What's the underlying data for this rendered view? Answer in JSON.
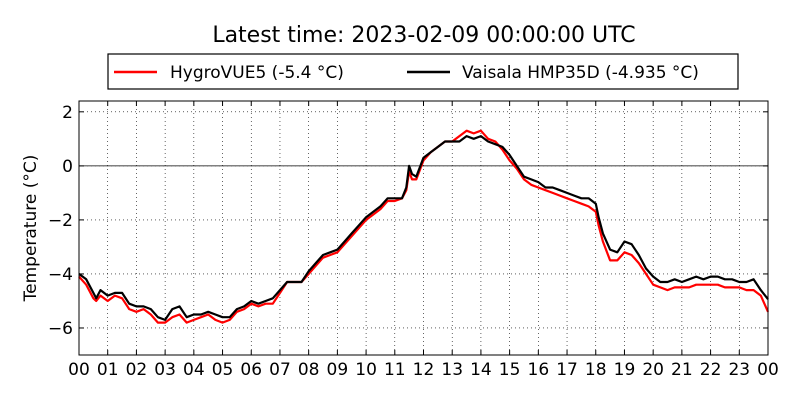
{
  "chart_data": {
    "type": "line",
    "title": "Latest time: 2023-02-09 00:00:00 UTC",
    "ylabel": "Temperature (°C)",
    "xlabel": "",
    "xlim": [
      0,
      24
    ],
    "ylim": [
      -7,
      2.4
    ],
    "x_ticks": [
      0,
      1,
      2,
      3,
      4,
      5,
      6,
      7,
      8,
      9,
      10,
      11,
      12,
      13,
      14,
      15,
      16,
      17,
      18,
      19,
      20,
      21,
      22,
      23,
      24
    ],
    "x_tick_labels": [
      "00",
      "01",
      "02",
      "03",
      "04",
      "05",
      "06",
      "07",
      "08",
      "09",
      "10",
      "11",
      "12",
      "13",
      "14",
      "15",
      "16",
      "17",
      "18",
      "19",
      "20",
      "21",
      "22",
      "23",
      "00"
    ],
    "y_ticks": [
      2,
      0,
      -2,
      -4,
      -6
    ],
    "y_tick_labels": [
      "2",
      "0",
      "−2",
      "−4",
      "−6"
    ],
    "grid": true,
    "zero_line": true,
    "legend_position": "top-center",
    "series": [
      {
        "name": "HygroVUE5 (-5.4 °C)",
        "color": "#ff0000",
        "x": [
          0,
          0.25,
          0.5,
          0.6,
          0.75,
          1,
          1.25,
          1.5,
          1.75,
          2,
          2.25,
          2.5,
          2.75,
          3,
          3.25,
          3.5,
          3.75,
          4,
          4.25,
          4.5,
          4.75,
          5,
          5.25,
          5.5,
          5.75,
          6,
          6.25,
          6.5,
          6.75,
          7,
          7.25,
          7.5,
          7.75,
          8,
          8.25,
          8.5,
          8.75,
          9,
          9.25,
          9.5,
          9.75,
          10,
          10.25,
          10.5,
          10.75,
          11,
          11.25,
          11.4,
          11.5,
          11.6,
          11.75,
          12,
          12.25,
          12.5,
          12.75,
          13,
          13.25,
          13.5,
          13.75,
          14,
          14.25,
          14.5,
          14.75,
          15,
          15.25,
          15.5,
          15.75,
          16,
          16.25,
          16.5,
          16.75,
          17,
          17.25,
          17.5,
          17.75,
          18,
          18.1,
          18.25,
          18.5,
          18.75,
          19,
          19.25,
          19.5,
          19.75,
          20,
          20.25,
          20.5,
          20.75,
          21,
          21.25,
          21.5,
          21.75,
          22,
          22.25,
          22.5,
          22.75,
          23,
          23.25,
          23.5,
          23.75,
          24
        ],
        "y": [
          -4.1,
          -4.4,
          -4.9,
          -5.0,
          -4.8,
          -5.0,
          -4.8,
          -4.9,
          -5.3,
          -5.4,
          -5.3,
          -5.5,
          -5.8,
          -5.8,
          -5.6,
          -5.5,
          -5.8,
          -5.7,
          -5.6,
          -5.5,
          -5.7,
          -5.8,
          -5.7,
          -5.4,
          -5.3,
          -5.1,
          -5.2,
          -5.1,
          -5.1,
          -4.7,
          -4.3,
          -4.3,
          -4.3,
          -4.0,
          -3.7,
          -3.4,
          -3.3,
          -3.2,
          -2.9,
          -2.6,
          -2.3,
          -2.0,
          -1.8,
          -1.6,
          -1.3,
          -1.3,
          -1.2,
          -0.9,
          -0.2,
          -0.5,
          -0.5,
          0.2,
          0.5,
          0.7,
          0.9,
          0.9,
          1.1,
          1.3,
          1.2,
          1.3,
          1.0,
          0.9,
          0.6,
          0.2,
          -0.1,
          -0.5,
          -0.7,
          -0.8,
          -0.9,
          -1.0,
          -1.1,
          -1.2,
          -1.3,
          -1.4,
          -1.5,
          -1.7,
          -2.2,
          -2.8,
          -3.5,
          -3.5,
          -3.2,
          -3.3,
          -3.6,
          -4.0,
          -4.4,
          -4.5,
          -4.6,
          -4.5,
          -4.5,
          -4.5,
          -4.4,
          -4.4,
          -4.4,
          -4.4,
          -4.5,
          -4.5,
          -4.5,
          -4.6,
          -4.6,
          -4.8,
          -5.4
        ]
      },
      {
        "name": "Vaisala HMP35D (-4.935 °C)",
        "color": "#000000",
        "x": [
          0,
          0.25,
          0.5,
          0.6,
          0.75,
          1,
          1.25,
          1.5,
          1.75,
          2,
          2.25,
          2.5,
          2.75,
          3,
          3.25,
          3.5,
          3.75,
          4,
          4.25,
          4.5,
          4.75,
          5,
          5.25,
          5.5,
          5.75,
          6,
          6.25,
          6.5,
          6.75,
          7,
          7.25,
          7.5,
          7.75,
          8,
          8.25,
          8.5,
          8.75,
          9,
          9.25,
          9.5,
          9.75,
          10,
          10.25,
          10.5,
          10.75,
          11,
          11.25,
          11.4,
          11.5,
          11.6,
          11.75,
          12,
          12.25,
          12.5,
          12.75,
          13,
          13.25,
          13.5,
          13.75,
          14,
          14.25,
          14.5,
          14.75,
          15,
          15.25,
          15.5,
          15.75,
          16,
          16.25,
          16.5,
          16.75,
          17,
          17.25,
          17.5,
          17.75,
          18,
          18.1,
          18.25,
          18.5,
          18.75,
          19,
          19.25,
          19.5,
          19.75,
          20,
          20.25,
          20.5,
          20.75,
          21,
          21.25,
          21.5,
          21.75,
          22,
          22.25,
          22.5,
          22.75,
          23,
          23.25,
          23.5,
          23.75,
          24
        ],
        "y": [
          -4.0,
          -4.2,
          -4.7,
          -4.9,
          -4.6,
          -4.8,
          -4.7,
          -4.7,
          -5.1,
          -5.2,
          -5.2,
          -5.3,
          -5.6,
          -5.7,
          -5.3,
          -5.2,
          -5.6,
          -5.5,
          -5.5,
          -5.4,
          -5.5,
          -5.6,
          -5.6,
          -5.3,
          -5.2,
          -5.0,
          -5.1,
          -5.0,
          -4.9,
          -4.6,
          -4.3,
          -4.3,
          -4.3,
          -3.9,
          -3.6,
          -3.3,
          -3.2,
          -3.1,
          -2.8,
          -2.5,
          -2.2,
          -1.9,
          -1.7,
          -1.5,
          -1.2,
          -1.2,
          -1.2,
          -0.8,
          0.0,
          -0.3,
          -0.4,
          0.3,
          0.5,
          0.7,
          0.9,
          0.9,
          0.9,
          1.1,
          1.0,
          1.1,
          0.9,
          0.8,
          0.7,
          0.4,
          0.0,
          -0.4,
          -0.5,
          -0.6,
          -0.8,
          -0.8,
          -0.9,
          -1.0,
          -1.1,
          -1.2,
          -1.2,
          -1.4,
          -1.9,
          -2.5,
          -3.1,
          -3.2,
          -2.8,
          -2.9,
          -3.3,
          -3.8,
          -4.1,
          -4.3,
          -4.3,
          -4.2,
          -4.3,
          -4.2,
          -4.1,
          -4.2,
          -4.1,
          -4.1,
          -4.2,
          -4.2,
          -4.3,
          -4.3,
          -4.2,
          -4.6,
          -4.935
        ]
      }
    ]
  }
}
